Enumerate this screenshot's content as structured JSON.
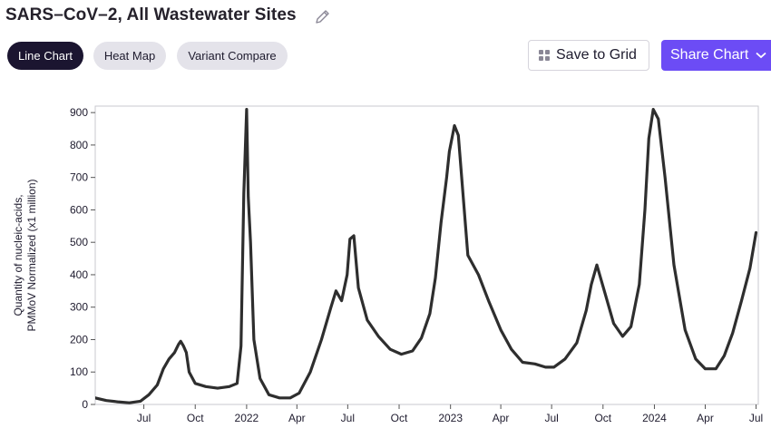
{
  "header": {
    "title": "SARS–CoV–2, All Wastewater Sites"
  },
  "tabs": [
    {
      "label": "Line Chart",
      "active": true
    },
    {
      "label": "Heat Map",
      "active": false
    },
    {
      "label": "Variant Compare",
      "active": false
    }
  ],
  "toolbar": {
    "save_label": "Save to Grid",
    "share_label": "Share Chart"
  },
  "colors": {
    "line": "#2e2e2e",
    "accent": "#6c4cf5",
    "active_tab": "#1b1530"
  },
  "chart_data": {
    "type": "line",
    "ylabel": "Quantity of nucleic-acids,\nPMMoV Normalized (x1 million)",
    "xlabel": "",
    "ylim": [
      0,
      920
    ],
    "xlim": [
      "2021-04-05",
      "2024-07-05"
    ],
    "y_ticks": [
      0,
      100,
      200,
      300,
      400,
      500,
      600,
      700,
      800,
      900
    ],
    "x_ticks": [
      {
        "date": "2021-07-01",
        "label": "Jul"
      },
      {
        "date": "2021-10-01",
        "label": "Oct"
      },
      {
        "date": "2022-01-01",
        "label": "2022"
      },
      {
        "date": "2022-04-01",
        "label": "Apr"
      },
      {
        "date": "2022-07-01",
        "label": "Jul"
      },
      {
        "date": "2022-10-01",
        "label": "Oct"
      },
      {
        "date": "2023-01-01",
        "label": "2023"
      },
      {
        "date": "2023-04-01",
        "label": "Apr"
      },
      {
        "date": "2023-07-01",
        "label": "Jul"
      },
      {
        "date": "2023-10-01",
        "label": "Oct"
      },
      {
        "date": "2024-01-01",
        "label": "2024"
      },
      {
        "date": "2024-04-01",
        "label": "Apr"
      },
      {
        "date": "2024-07-01",
        "label": "Jul"
      }
    ],
    "grid": false,
    "series": [
      {
        "x": [
          "2021-04-05",
          "2021-04-25",
          "2021-05-15",
          "2021-06-05",
          "2021-06-25",
          "2021-07-10",
          "2021-07-25",
          "2021-08-05",
          "2021-08-15",
          "2021-08-25",
          "2021-09-01",
          "2021-09-05",
          "2021-09-10",
          "2021-09-15",
          "2021-09-20",
          "2021-10-01",
          "2021-10-20",
          "2021-11-10",
          "2021-12-01",
          "2021-12-15",
          "2021-12-22",
          "2021-12-27",
          "2022-01-01",
          "2022-01-04",
          "2022-01-08",
          "2022-01-14",
          "2022-01-25",
          "2022-02-10",
          "2022-03-01",
          "2022-03-20",
          "2022-04-05",
          "2022-04-25",
          "2022-05-15",
          "2022-06-01",
          "2022-06-10",
          "2022-06-20",
          "2022-06-30",
          "2022-07-05",
          "2022-07-12",
          "2022-07-20",
          "2022-08-05",
          "2022-08-25",
          "2022-09-15",
          "2022-10-05",
          "2022-10-25",
          "2022-11-10",
          "2022-11-25",
          "2022-12-05",
          "2022-12-15",
          "2022-12-25",
          "2022-12-30",
          "2023-01-08",
          "2023-01-15",
          "2023-02-01",
          "2023-02-20",
          "2023-03-10",
          "2023-04-01",
          "2023-04-20",
          "2023-05-10",
          "2023-06-01",
          "2023-06-20",
          "2023-07-05",
          "2023-07-25",
          "2023-08-15",
          "2023-09-01",
          "2023-09-10",
          "2023-09-20",
          "2023-10-05",
          "2023-10-20",
          "2023-11-05",
          "2023-11-20",
          "2023-12-05",
          "2023-12-15",
          "2023-12-22",
          "2023-12-30",
          "2024-01-08",
          "2024-01-20",
          "2024-02-05",
          "2024-02-25",
          "2024-03-15",
          "2024-04-01",
          "2024-04-20",
          "2024-05-05",
          "2024-05-20",
          "2024-06-05",
          "2024-06-20",
          "2024-07-01"
        ],
        "y": [
          20,
          12,
          8,
          5,
          10,
          30,
          60,
          110,
          140,
          160,
          185,
          195,
          180,
          160,
          100,
          65,
          55,
          50,
          55,
          65,
          180,
          650,
          910,
          640,
          500,
          200,
          80,
          30,
          20,
          20,
          35,
          100,
          200,
          300,
          350,
          320,
          400,
          510,
          520,
          360,
          260,
          210,
          170,
          155,
          165,
          205,
          280,
          390,
          560,
          700,
          780,
          860,
          830,
          460,
          400,
          320,
          230,
          170,
          130,
          125,
          115,
          115,
          140,
          190,
          290,
          370,
          430,
          340,
          250,
          210,
          240,
          370,
          600,
          820,
          910,
          880,
          700,
          430,
          230,
          140,
          110,
          110,
          150,
          220,
          320,
          420,
          530
        ]
      }
    ]
  }
}
